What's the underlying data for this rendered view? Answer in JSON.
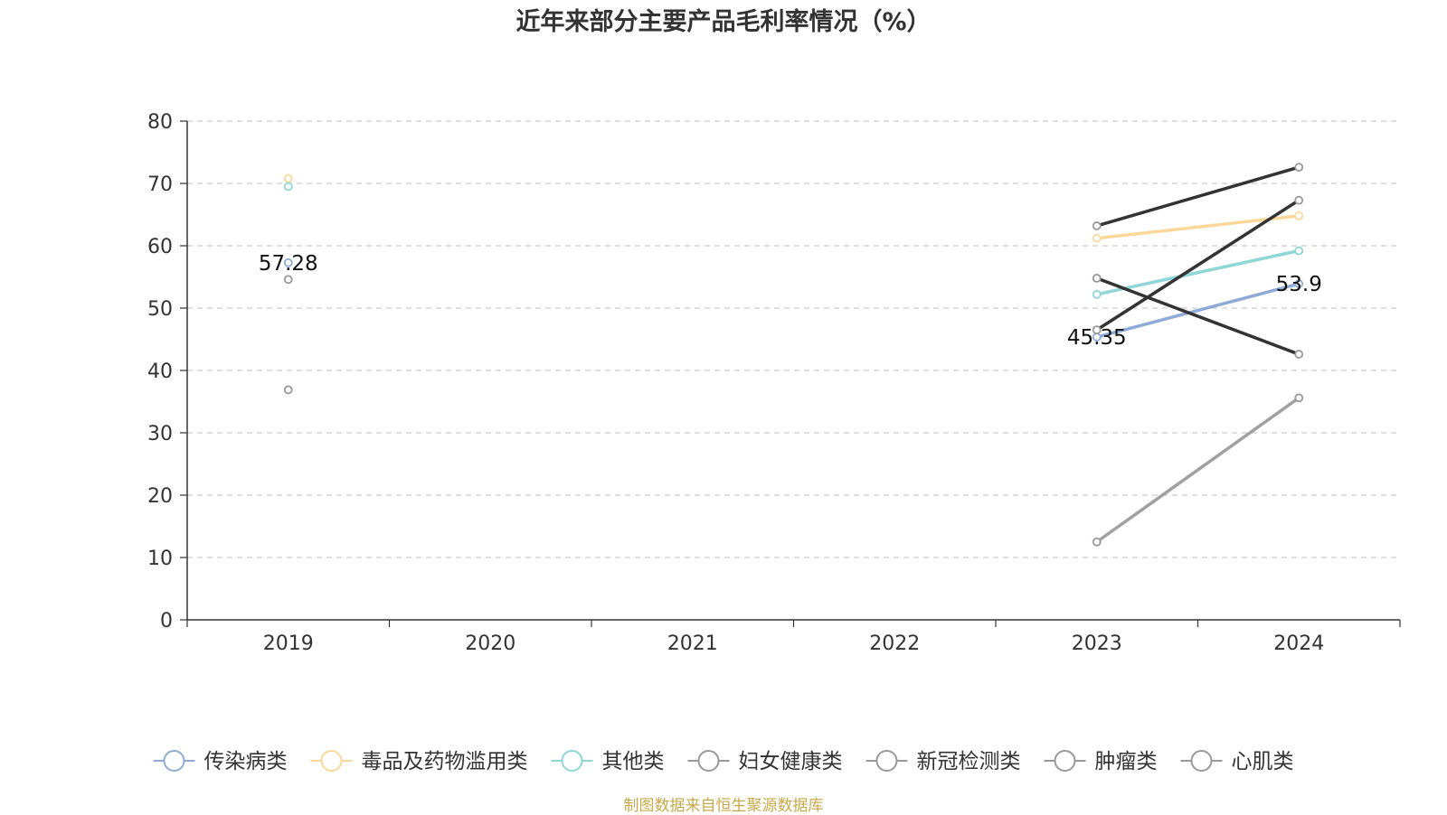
{
  "chart_data": {
    "type": "line",
    "title": "近年来部分主要产品毛利率情况（%）",
    "source": "制图数据来自恒生聚源数据库",
    "categories": [
      "2019",
      "2020",
      "2021",
      "2022",
      "2023",
      "2024"
    ],
    "ylim": [
      0,
      80
    ],
    "yticks": [
      0,
      10,
      20,
      30,
      40,
      50,
      60,
      70,
      80
    ],
    "grid": true,
    "legend_position": "bottom",
    "series": [
      {
        "name": "传染病类",
        "color": "#8eaad6",
        "values": [
          57.28,
          null,
          null,
          null,
          45.35,
          53.9
        ],
        "labels": [
          "57.28",
          null,
          null,
          null,
          "45.35",
          "53.9"
        ]
      },
      {
        "name": "毒品及药物滥用类",
        "color": "#fbd899",
        "values": [
          70.8,
          null,
          null,
          null,
          61.2,
          64.8
        ]
      },
      {
        "name": "其他类",
        "color": "#8fd6d6",
        "values": [
          69.5,
          null,
          null,
          null,
          52.2,
          59.2
        ]
      },
      {
        "name": "妇女健康类",
        "color": "#9c9c9c",
        "values": [
          54.6,
          null,
          null,
          null,
          12.5,
          35.6
        ]
      },
      {
        "name": "新冠检测类",
        "color": "#9c9c9c",
        "values": [
          36.9,
          null,
          null,
          null,
          54.8,
          42.6
        ]
      },
      {
        "name": "肿瘤类",
        "color": "#9c9c9c",
        "values": [
          null,
          null,
          null,
          null,
          46.5,
          67.3
        ]
      },
      {
        "name": "心肌类",
        "color": "#9c9c9c",
        "values": [
          null,
          null,
          null,
          null,
          63.2,
          72.6
        ]
      }
    ],
    "line_colors": {
      "妇女健康类": "#a0a0a0",
      "新冠检测类": "#333333",
      "肿瘤类": "#333333",
      "心肌类": "#333333"
    }
  }
}
